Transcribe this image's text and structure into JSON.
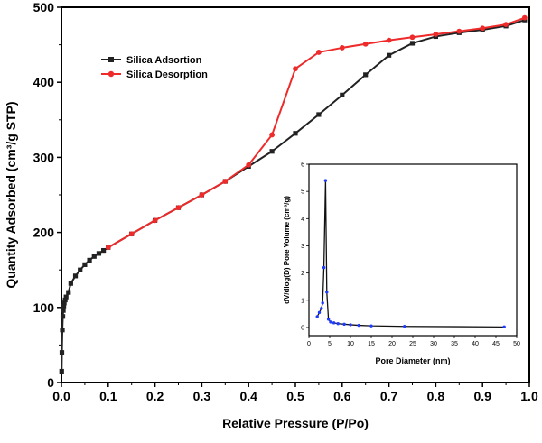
{
  "chart_data": [
    {
      "type": "line",
      "xlabel": "Relative Pressure (P/Po)",
      "ylabel": "Quantity Adsorbed (cm³/g STP)",
      "xlim": [
        0,
        1.0
      ],
      "ylim": [
        0,
        500
      ],
      "x_ticks": [
        "0.0",
        "0.1",
        "0.2",
        "0.3",
        "0.4",
        "0.5",
        "0.6",
        "0.7",
        "0.8",
        "0.9",
        "1.0"
      ],
      "y_ticks": [
        "0",
        "100",
        "200",
        "300",
        "400",
        "500"
      ],
      "grid": false,
      "legend_position": "top-left",
      "series": [
        {
          "name": "Silica Adsortion",
          "color": "#222222",
          "marker": "square",
          "x": [
            0.0005,
            0.001,
            0.002,
            0.003,
            0.004,
            0.005,
            0.006,
            0.008,
            0.01,
            0.015,
            0.02,
            0.03,
            0.04,
            0.05,
            0.06,
            0.07,
            0.08,
            0.09,
            0.1,
            0.15,
            0.2,
            0.25,
            0.3,
            0.35,
            0.4,
            0.45,
            0.5,
            0.55,
            0.6,
            0.65,
            0.7,
            0.75,
            0.8,
            0.85,
            0.9,
            0.95,
            0.99
          ],
          "y": [
            15,
            40,
            70,
            88,
            96,
            102,
            106,
            110,
            114,
            120,
            132,
            142,
            150,
            157,
            163,
            168,
            172,
            176,
            180,
            198,
            216,
            233,
            250,
            268,
            288,
            308,
            332,
            357,
            383,
            410,
            436,
            452,
            461,
            466,
            470,
            475,
            483
          ]
        },
        {
          "name": "Silica Desorption",
          "color": "#ee2a2a",
          "marker": "circle",
          "x": [
            0.1,
            0.15,
            0.2,
            0.25,
            0.3,
            0.35,
            0.4,
            0.45,
            0.5,
            0.55,
            0.6,
            0.65,
            0.7,
            0.75,
            0.8,
            0.85,
            0.9,
            0.95,
            0.99
          ],
          "y": [
            180,
            198,
            216,
            233,
            250,
            268,
            290,
            330,
            418,
            440,
            446,
            451,
            456,
            460,
            464,
            468,
            472,
            477,
            486
          ]
        }
      ]
    },
    {
      "type": "line",
      "xlabel": "Pore Diameter (nm)",
      "ylabel": "dV/dlog(D) Pore Volume (cm³/g)",
      "xlim": [
        0,
        50
      ],
      "ylim": [
        -0.3,
        6
      ],
      "x_ticks": [
        "0",
        "5",
        "10",
        "15",
        "20",
        "25",
        "30",
        "35",
        "40",
        "45",
        "50"
      ],
      "y_ticks": [
        "0",
        "1",
        "2",
        "3",
        "4",
        "5",
        "6"
      ],
      "legend_position": "none",
      "series": [
        {
          "color": "#111111",
          "marker_color": "#1f3bff",
          "marker": "circle",
          "x": [
            2.0,
            2.5,
            3.0,
            3.3,
            3.6,
            4.0,
            4.3,
            4.7,
            5.2,
            6.0,
            7.0,
            8.5,
            10.0,
            12.0,
            15.0,
            23.0,
            47.0
          ],
          "y": [
            0.4,
            0.55,
            0.7,
            0.9,
            2.2,
            5.4,
            1.3,
            0.3,
            0.2,
            0.17,
            0.14,
            0.12,
            0.1,
            0.08,
            0.06,
            0.04,
            0.02
          ]
        }
      ]
    }
  ]
}
